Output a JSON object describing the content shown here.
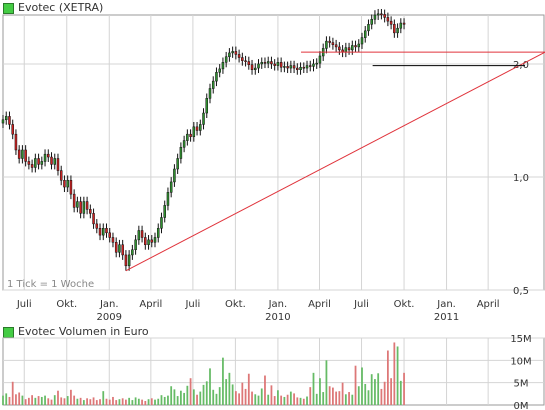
{
  "header": {
    "title": "Evotec (XETRA)",
    "volume_title": "Evotec Volumen in Euro",
    "swatch_color": "#44cc44"
  },
  "note": "1 Tick = 1 Woche",
  "colors": {
    "up": "#2f8f2f",
    "down": "#cc2222",
    "wick": "#111111",
    "grid": "#d4d4d4",
    "trendline": "#e0333b",
    "support": "#000000",
    "vol_up": "#66bb66",
    "vol_down": "#dd7777"
  },
  "chart_data": [
    {
      "type": "candlestick",
      "title": "Evotec (XETRA)",
      "scale": "log",
      "ylim": [
        0.5,
        2.7
      ],
      "yticks": [
        0.5,
        1.0,
        2.0
      ],
      "ytick_labels": [
        "0,5",
        "1,0",
        "2,0"
      ],
      "xtick_labels": [
        "Juli",
        "Okt.",
        "Jan.",
        "April",
        "Juli",
        "Okt.",
        "Jan.",
        "April",
        "Juli",
        "Okt.",
        "Jan.",
        "April"
      ],
      "xtick_dates": [
        "2008-07",
        "2008-10",
        "2009-01",
        "2009-04",
        "2009-07",
        "2009-10",
        "2010-01",
        "2010-04",
        "2010-07",
        "2010-10",
        "2011-01",
        "2011-04"
      ],
      "year_labels": [
        {
          "label": "2009",
          "date": "2009-01"
        },
        {
          "label": "2010",
          "date": "2010-01"
        },
        {
          "label": "2011",
          "date": "2011-01"
        }
      ],
      "x_range": [
        "2008-05-16",
        "2011-05-01"
      ],
      "start_week": "2008-05-16",
      "interval": "1 week",
      "grid": true,
      "closes": [
        1.42,
        1.45,
        1.38,
        1.3,
        1.18,
        1.12,
        1.18,
        1.1,
        1.08,
        1.06,
        1.12,
        1.08,
        1.1,
        1.15,
        1.13,
        1.08,
        1.12,
        1.04,
        0.98,
        0.94,
        0.98,
        0.9,
        0.83,
        0.86,
        0.8,
        0.86,
        0.82,
        0.8,
        0.75,
        0.73,
        0.7,
        0.73,
        0.71,
        0.69,
        0.67,
        0.63,
        0.66,
        0.62,
        0.58,
        0.62,
        0.64,
        0.68,
        0.72,
        0.69,
        0.66,
        0.68,
        0.67,
        0.69,
        0.73,
        0.78,
        0.84,
        0.91,
        0.97,
        1.05,
        1.12,
        1.2,
        1.25,
        1.3,
        1.28,
        1.36,
        1.33,
        1.38,
        1.48,
        1.62,
        1.72,
        1.8,
        1.9,
        1.94,
        2.02,
        2.09,
        2.14,
        2.16,
        2.12,
        2.08,
        2.04,
        2.03,
        1.99,
        1.93,
        1.95,
        2.0,
        2.02,
        2.01,
        2.03,
        2.0,
        1.98,
        2.02,
        1.96,
        1.97,
        1.95,
        1.98,
        1.95,
        1.93,
        1.96,
        1.95,
        1.98,
        1.97,
        2.0,
        2.01,
        2.1,
        2.2,
        2.3,
        2.28,
        2.25,
        2.22,
        2.18,
        2.15,
        2.21,
        2.18,
        2.24,
        2.22,
        2.26,
        2.35,
        2.45,
        2.55,
        2.63,
        2.7,
        2.72,
        2.71,
        2.66,
        2.6,
        2.55,
        2.42,
        2.49,
        2.57,
        2.55
      ]
    },
    {
      "type": "bar",
      "title": "Evotec Volumen in Euro",
      "ylim": [
        0,
        15
      ],
      "yticks": [
        0,
        5,
        10,
        15
      ],
      "ytick_labels": [
        "0M",
        "5M",
        "10M",
        "15M"
      ],
      "units": "Mio. Euro",
      "volumes": [
        2.1,
        2.6,
        1.8,
        5.2,
        2.4,
        2.8,
        2.1,
        1.3,
        1.6,
        2.2,
        1.6,
        2.0,
        1.8,
        2.1,
        1.5,
        1.2,
        2.2,
        3.2,
        1.7,
        1.5,
        2.0,
        3.4,
        2.1,
        1.4,
        1.6,
        1.1,
        1.5,
        1.3,
        1.7,
        1.1,
        1.3,
        3.1,
        1.4,
        1.2,
        1.8,
        1.1,
        1.3,
        1.5,
        1.2,
        1.6,
        1.1,
        1.7,
        1.4,
        1.2,
        0.9,
        1.3,
        1.5,
        1.2,
        1.4,
        2.2,
        1.8,
        2.1,
        4.2,
        3.5,
        2.0,
        3.2,
        2.7,
        4.3,
        6.0,
        3.5,
        2.3,
        3.0,
        4.5,
        5.3,
        8.2,
        3.4,
        2.5,
        4.0,
        10.6,
        5.8,
        7.2,
        4.6,
        3.1,
        2.6,
        5.0,
        3.6,
        7.0,
        3.0,
        2.4,
        2.1,
        3.7,
        6.6,
        2.3,
        4.4,
        2.0,
        3.3,
        2.1,
        1.8,
        2.3,
        3.0,
        2.6,
        1.7,
        1.6,
        1.4,
        1.9,
        4.0,
        7.2,
        2.5,
        6.0,
        2.9,
        10.0,
        4.2,
        3.9,
        3.0,
        3.1,
        5.0,
        2.4,
        2.9,
        2.3,
        8.8,
        4.2,
        8.4,
        4.7,
        3.3,
        6.9,
        5.8,
        7.1,
        3.6,
        5.2,
        12.2,
        6.0,
        14.0,
        13.1,
        5.4,
        7.2
      ]
    }
  ]
}
